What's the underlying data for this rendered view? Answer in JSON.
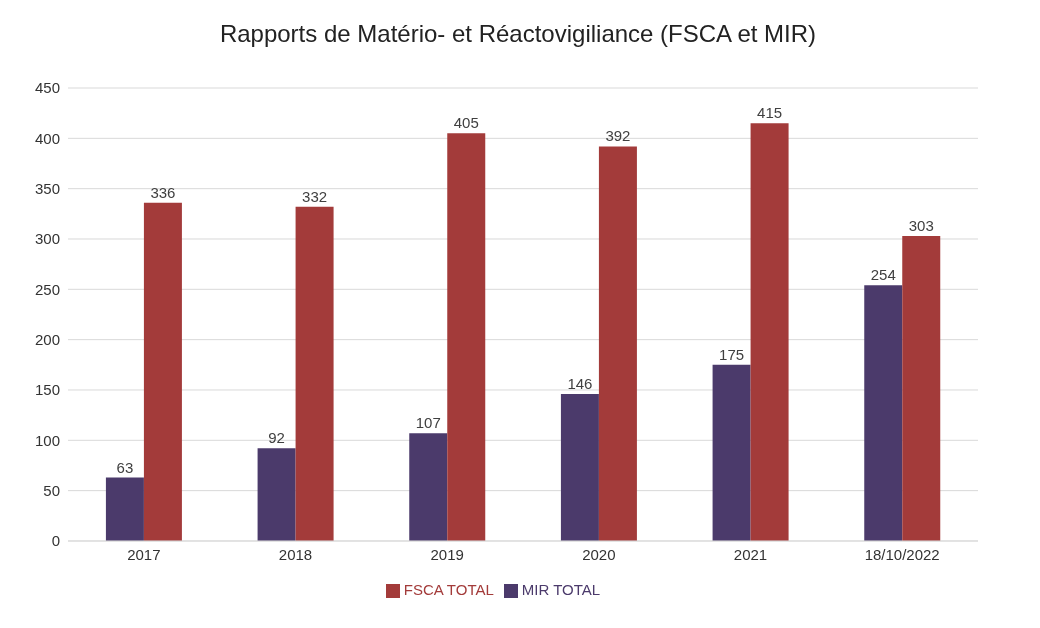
{
  "chart_data": {
    "type": "bar",
    "title": "Rapports de Matério- et Réactovigiliance (FSCA et MIR)",
    "categories": [
      "2017",
      "2018",
      "2019",
      "2020",
      "2021",
      "18/10/2022"
    ],
    "series": [
      {
        "name": "MIR TOTAL",
        "color": "#4b3a6b",
        "values": [
          63,
          92,
          107,
          146,
          175,
          254
        ]
      },
      {
        "name": "FSCA TOTAL",
        "color": "#a33b3a",
        "values": [
          336,
          332,
          405,
          392,
          415,
          303
        ]
      }
    ],
    "ylim": [
      0,
      450
    ],
    "yticks": [
      0,
      50,
      100,
      150,
      200,
      250,
      300,
      350,
      400,
      450
    ],
    "grid": "y",
    "legend": "bottom",
    "data_labels": true
  }
}
